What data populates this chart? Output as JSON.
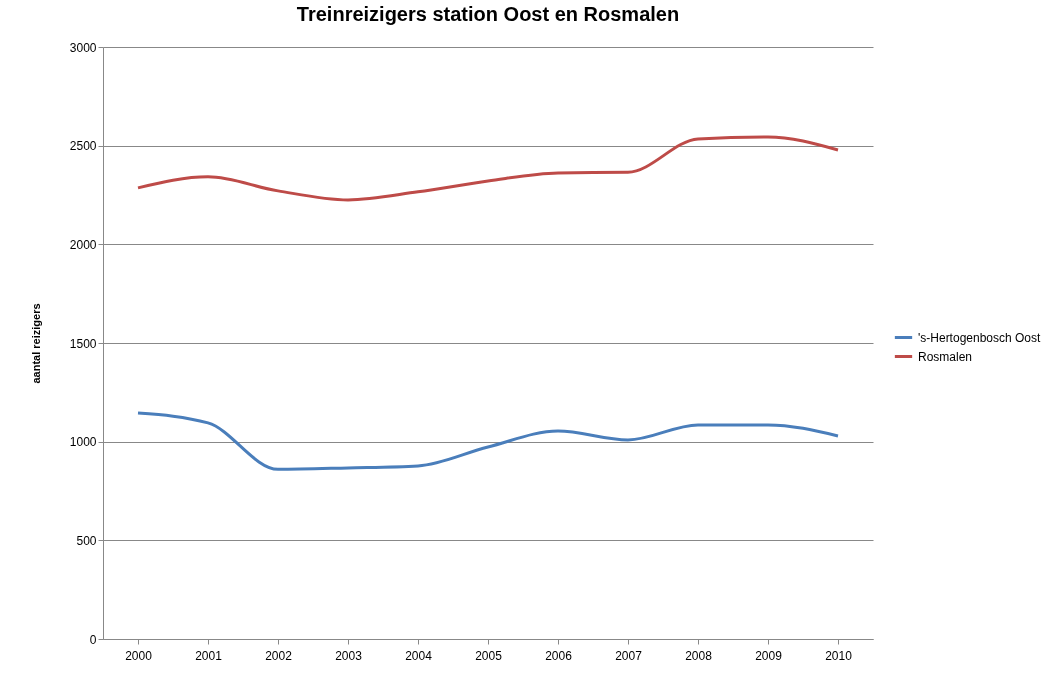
{
  "chart_data": {
    "type": "line",
    "title": "Treinreizigers station Oost en Rosmalen",
    "ylabel": "aantal reizigers",
    "categories": [
      "2000",
      "2001",
      "2002",
      "2003",
      "2004",
      "2005",
      "2006",
      "2007",
      "2008",
      "2009",
      "2010"
    ],
    "series": [
      {
        "name": "'s-Hertogenbosch Oost",
        "color": "#4a7ebb",
        "values": [
          1145,
          1095,
          860,
          867,
          877,
          973,
          1054,
          1009,
          1085,
          1085,
          1029
        ]
      },
      {
        "name": "Rosmalen",
        "color": "#be4b48",
        "values": [
          2286,
          2342,
          2271,
          2225,
          2266,
          2321,
          2362,
          2365,
          2534,
          2544,
          2478
        ]
      }
    ],
    "ylim": [
      0,
      3000
    ],
    "yticks": [
      0,
      500,
      1000,
      1500,
      2000,
      2500,
      3000
    ],
    "grid": "y",
    "legend": "right",
    "marker": "none",
    "line_style": "solid"
  }
}
